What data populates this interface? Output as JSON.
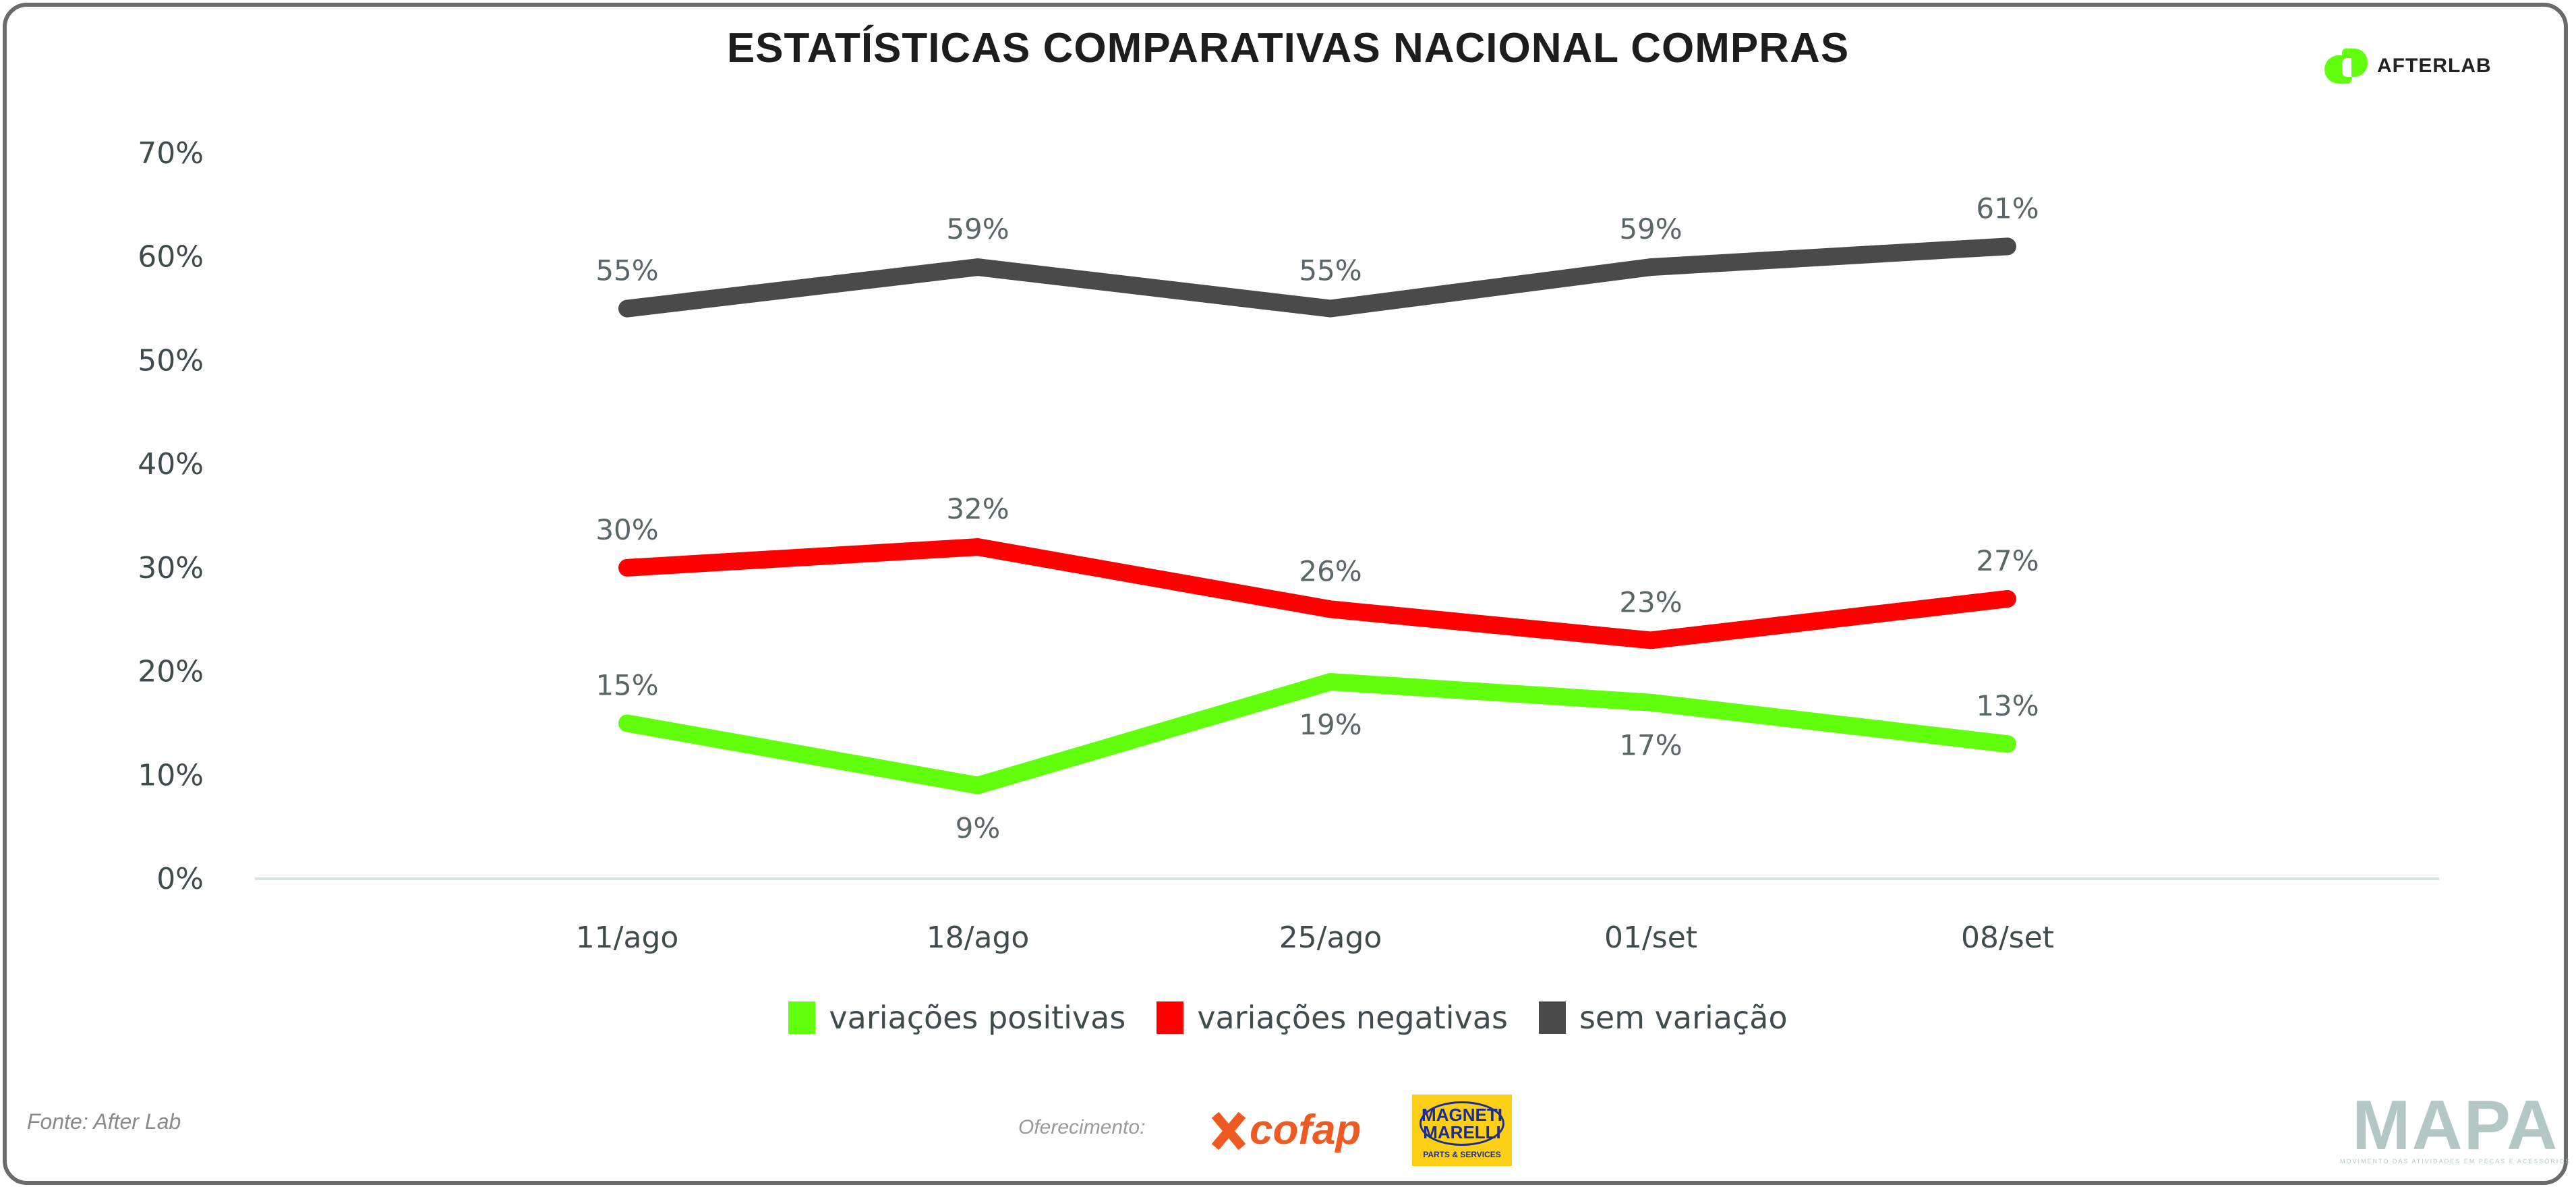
{
  "header": {
    "title": "ESTATÍSTICAS COMPARATIVAS NACIONAL COMPRAS",
    "brand": "AFTERLAB"
  },
  "chart_data": {
    "type": "line",
    "title": "ESTATÍSTICAS COMPARATIVAS NACIONAL COMPRAS",
    "xlabel": "",
    "ylabel": "",
    "categories": [
      "11/ago",
      "18/ago",
      "25/ago",
      "01/set",
      "08/set"
    ],
    "yticks": [
      "0%",
      "10%",
      "20%",
      "30%",
      "40%",
      "50%",
      "60%",
      "70%"
    ],
    "ylim": [
      0,
      70
    ],
    "grid": false,
    "legend_position": "bottom-center",
    "series": [
      {
        "name": "variações positivas",
        "color": "#62ff0c",
        "values": [
          15,
          9,
          19,
          17,
          13
        ],
        "labels": [
          "15%",
          "9%",
          "19%",
          "17%",
          "13%"
        ],
        "label_pos": [
          "above",
          "below",
          "below",
          "below",
          "above"
        ]
      },
      {
        "name": "variações negativas",
        "color": "#ff0000",
        "values": [
          30,
          32,
          26,
          23,
          27
        ],
        "labels": [
          "30%",
          "32%",
          "26%",
          "23%",
          "27%"
        ],
        "label_pos": [
          "above",
          "above",
          "above",
          "above",
          "above"
        ]
      },
      {
        "name": "sem variação",
        "color": "#4a4a4a",
        "values": [
          55,
          59,
          55,
          59,
          61
        ],
        "labels": [
          "55%",
          "59%",
          "55%",
          "59%",
          "61%"
        ],
        "label_pos": [
          "above",
          "above",
          "above",
          "above",
          "above"
        ]
      }
    ]
  },
  "legend": [
    {
      "label": "variações positivas",
      "color": "#62ff0c"
    },
    {
      "label": "variações negativas",
      "color": "#ff0000"
    },
    {
      "label": "sem variação",
      "color": "#4a4a4a"
    }
  ],
  "footer": {
    "source": "Fonte: After Lab",
    "sponsor_label": "Oferecimento:",
    "sponsor_1": "cofap",
    "sponsor_2_name": "MAGNETI MARELLI",
    "sponsor_2_sub": "PARTS & SERVICES",
    "mapa_word": "MAPA",
    "mapa_sub": "MOVIMENTO DAS ATIVIDADES EM PEÇAS E ACESSÓRIOS"
  }
}
